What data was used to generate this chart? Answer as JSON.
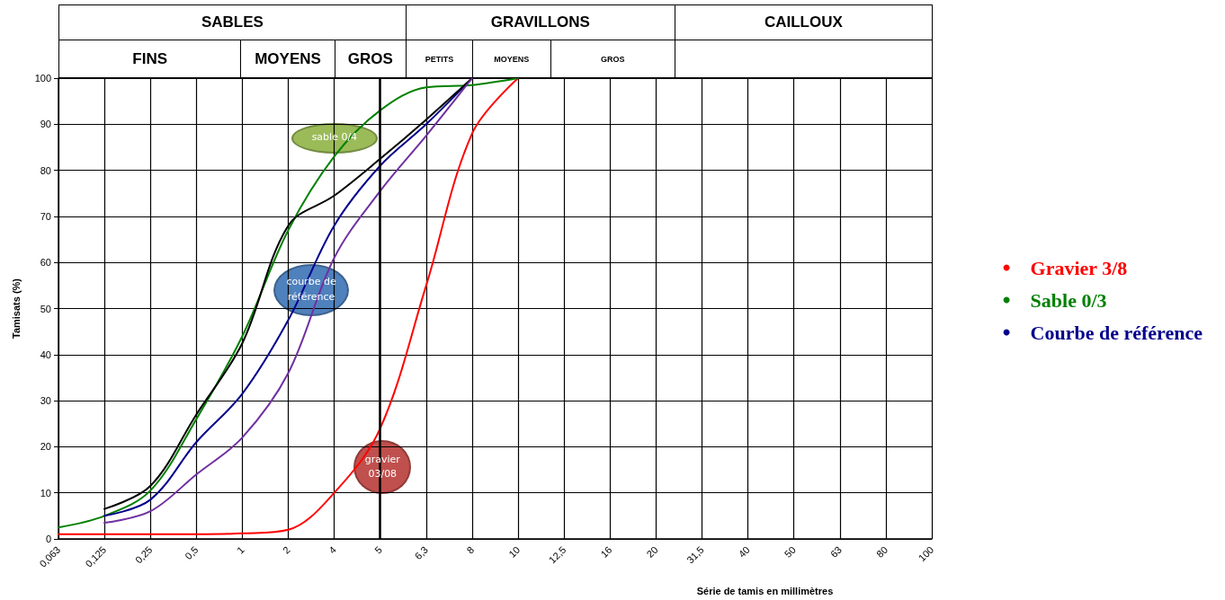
{
  "chart_data": {
    "type": "line",
    "xlabel": "Série de tamis en millimètres",
    "ylabel": "Tamisats (%)",
    "categories": [
      "0,063",
      "0,125",
      "0,25",
      "0,5",
      "1",
      "2",
      "4",
      "5",
      "6,3",
      "8",
      "10",
      "12,5",
      "16",
      "20",
      "31,5",
      "40",
      "50",
      "63",
      "80",
      "100"
    ],
    "series": [
      {
        "name": "Gravier 3/8",
        "color": "#ff0000",
        "values": [
          1,
          1,
          1,
          1,
          1.2,
          2,
          10,
          24,
          55,
          88,
          100,
          null,
          null,
          null,
          null,
          null,
          null,
          null,
          null,
          null
        ]
      },
      {
        "name": "Sable 0/3",
        "color": "#008000",
        "values": [
          2.5,
          5,
          10.5,
          26,
          44,
          67,
          83,
          93,
          98,
          98.5,
          100,
          null,
          null,
          null,
          null,
          null,
          null,
          null,
          null,
          null
        ]
      },
      {
        "name": "Courbe de référence",
        "color": "#00008b",
        "values": [
          null,
          5,
          8.5,
          21,
          31.5,
          47.5,
          68,
          81,
          90,
          100,
          null,
          null,
          null,
          null,
          null,
          null,
          null,
          null,
          null,
          null
        ]
      },
      {
        "color": "#000000",
        "values": [
          null,
          6.5,
          11.5,
          27,
          42.5,
          68,
          74.5,
          82.5,
          91,
          100,
          null,
          null,
          null,
          null,
          null,
          null,
          null,
          null,
          null,
          null
        ]
      },
      {
        "color": "#7030a0",
        "values": [
          null,
          3.5,
          6,
          14,
          22,
          36,
          61,
          75.5,
          87.5,
          100,
          null,
          null,
          null,
          null,
          null,
          null,
          null,
          null,
          null,
          null
        ]
      }
    ],
    "ylim": [
      0,
      100
    ],
    "yticks": [
      0,
      10,
      20,
      30,
      40,
      50,
      60,
      70,
      80,
      90,
      100
    ],
    "grid": true,
    "legend": "right",
    "marker": "none",
    "line_style": "solid",
    "ref_lines": [
      {
        "axis": "x",
        "value": "5",
        "color": "#000000"
      }
    ],
    "annotations": [
      "SABLES",
      "GRAVILLONS",
      "CAILLOUX",
      "FINS",
      "MOYENS",
      "GROS",
      "PETITS",
      "MOYENS",
      "GROS",
      "sable 0/4",
      "courbe de référence",
      "gravier 03/08"
    ]
  }
}
